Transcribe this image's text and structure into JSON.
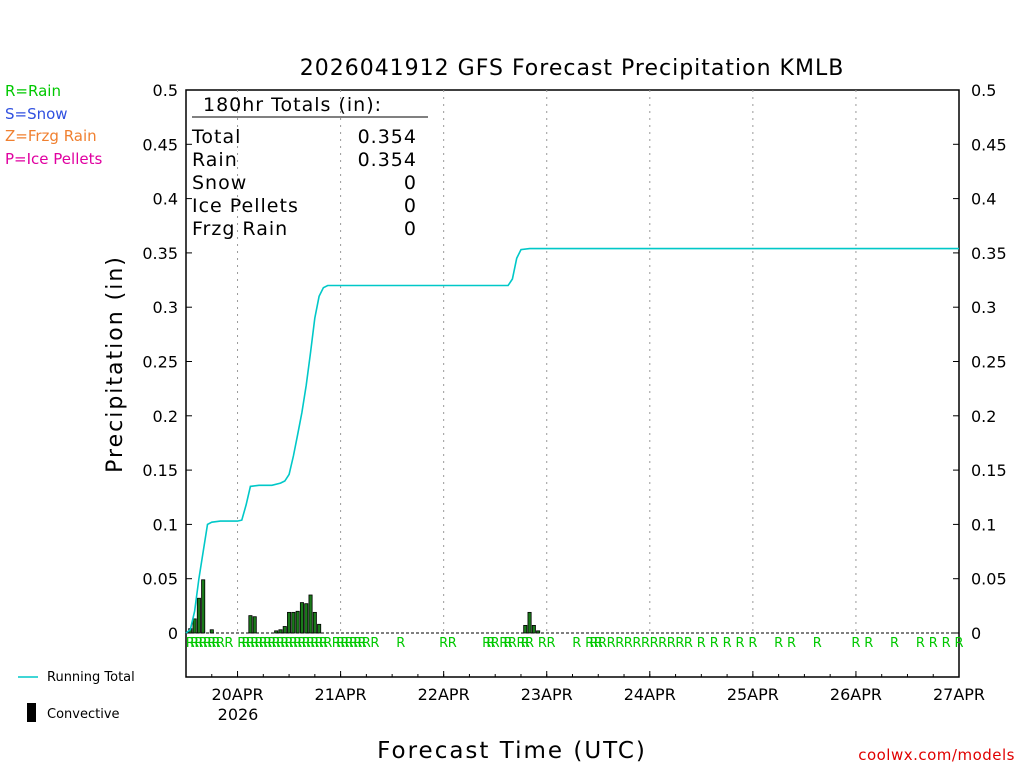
{
  "chart_data": {
    "type": "line",
    "title": "2026041912 GFS Forecast Precipitation KMLB",
    "xlabel": "Forecast Time (UTC)",
    "ylabel": "Precipitation (in)",
    "ylim": [
      0,
      0.5
    ],
    "xlim_hours": [
      0,
      180
    ],
    "start_date": "20APR",
    "y_ticks": [
      "0",
      "0.05",
      "0.1",
      "0.15",
      "0.2",
      "0.25",
      "0.3",
      "0.35",
      "0.4",
      "0.45",
      "0.5"
    ],
    "x_ticks": [
      {
        "label": "20APR",
        "hour": 12
      },
      {
        "label": "21APR",
        "hour": 36
      },
      {
        "label": "22APR",
        "hour": 60
      },
      {
        "label": "23APR",
        "hour": 84
      },
      {
        "label": "24APR",
        "hour": 108
      },
      {
        "label": "25APR",
        "hour": 132
      },
      {
        "label": "26APR",
        "hour": 156
      },
      {
        "label": "27APR",
        "hour": 180
      }
    ],
    "year_label": "2026",
    "grid": true,
    "running_total": {
      "name": "Running Total",
      "color": "#00c8c8",
      "x": [
        0,
        1,
        2,
        3,
        4,
        5,
        6,
        8,
        10,
        12,
        13,
        14,
        15,
        17,
        20,
        22,
        23,
        24,
        25,
        26,
        27,
        28,
        29,
        30,
        31,
        32,
        33,
        34,
        36,
        60,
        75,
        76,
        77,
        78,
        80,
        84,
        180
      ],
      "y": [
        0,
        0.003,
        0.02,
        0.05,
        0.075,
        0.1,
        0.102,
        0.103,
        0.103,
        0.103,
        0.104,
        0.118,
        0.135,
        0.136,
        0.136,
        0.138,
        0.14,
        0.146,
        0.163,
        0.183,
        0.203,
        0.228,
        0.258,
        0.29,
        0.31,
        0.318,
        0.32,
        0.32,
        0.32,
        0.32,
        0.32,
        0.326,
        0.345,
        0.353,
        0.354,
        0.354,
        0.354
      ]
    },
    "convective": {
      "name": "Convective",
      "color": "#000000",
      "x": [
        1,
        2,
        3,
        4,
        6,
        15,
        16,
        21,
        22,
        23,
        24,
        25,
        26,
        27,
        28,
        29,
        30,
        31,
        79,
        80,
        81,
        82
      ],
      "y": [
        0.004,
        0.013,
        0.032,
        0.049,
        0.003,
        0.016,
        0.015,
        0.002,
        0.003,
        0.006,
        0.019,
        0.019,
        0.02,
        0.028,
        0.027,
        0.035,
        0.019,
        0.008,
        0.007,
        0.019,
        0.007,
        0.002
      ]
    },
    "type_markers": {
      "color": "#00c800",
      "x": [
        1,
        2,
        3,
        4,
        5,
        6,
        7,
        8,
        10,
        13,
        14,
        15,
        16,
        17,
        18,
        19,
        20,
        21,
        22,
        23,
        24,
        25,
        26,
        27,
        28,
        29,
        30,
        31,
        32,
        33,
        35,
        36,
        37,
        38,
        39,
        40,
        41,
        42,
        44,
        50,
        60,
        62,
        70,
        71,
        72,
        74,
        75,
        76,
        78,
        79,
        80,
        83,
        85,
        91,
        94,
        95,
        96,
        97,
        99,
        101,
        103,
        105,
        107,
        109,
        111,
        113,
        115,
        117,
        120,
        123,
        126,
        129,
        132,
        138,
        141,
        147,
        156,
        159,
        165,
        171,
        174,
        177,
        180
      ],
      "symbol": "R"
    },
    "totals_box": {
      "heading": "180hr Totals (in):",
      "rows": [
        {
          "label": "Total",
          "value": "0.354"
        },
        {
          "label": "Rain",
          "value": "0.354"
        },
        {
          "label": "Snow",
          "value": "0"
        },
        {
          "label": "Ice Pellets",
          "value": "0"
        },
        {
          "label": "Frzg Rain",
          "value": "0"
        }
      ]
    }
  },
  "legend": {
    "items": [
      {
        "text": "R=Rain",
        "color": "#00c800"
      },
      {
        "text": "S=Snow",
        "color": "#3050e0"
      },
      {
        "text": "Z=Frzg Rain",
        "color": "#f08030"
      },
      {
        "text": "P=Ice Pellets",
        "color": "#e000a0"
      }
    ]
  },
  "bottom_legend": {
    "running_total": "Running Total",
    "convective": "Convective"
  },
  "footer": "coolwx.com/models"
}
